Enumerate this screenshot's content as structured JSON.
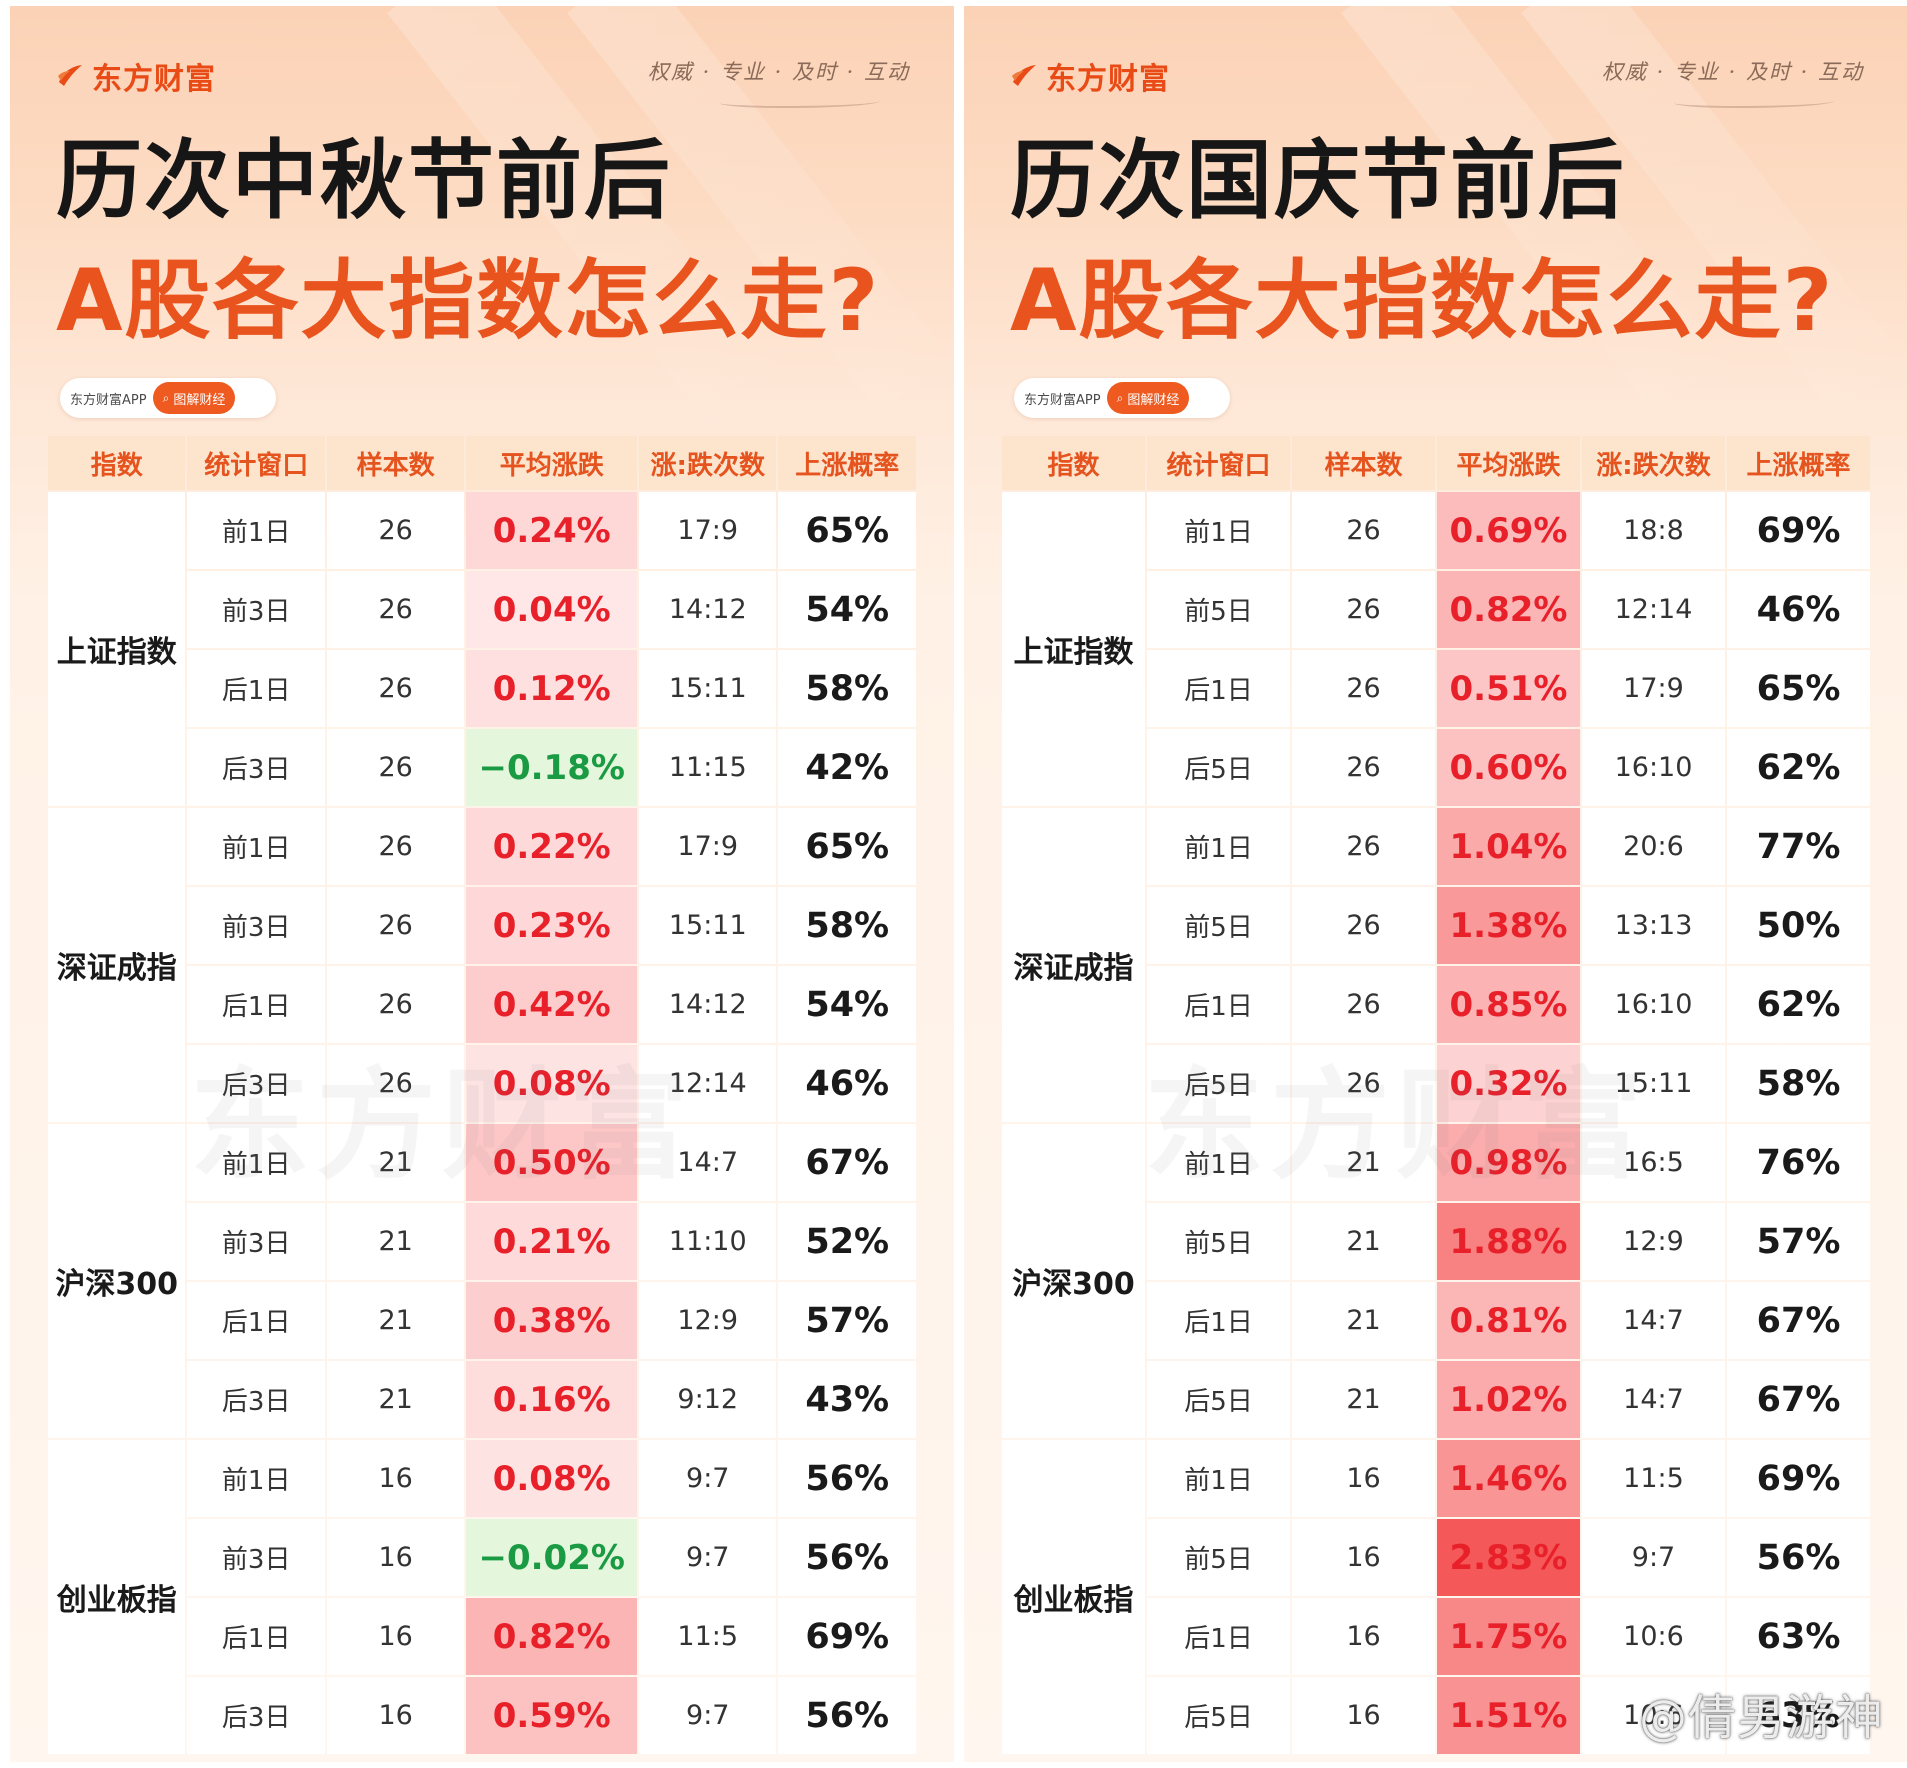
{
  "brand": {
    "name": "东方财富",
    "slogan": "权威 · 专业 · 及时 · 互动",
    "app_label": "东方财富APP",
    "tag_label": "图解财经",
    "watermark": "东方财富",
    "color_accent": "#e9531d"
  },
  "weibo_watermark": "@倩男游神",
  "colors": {
    "header_bg": "#fde4cd",
    "header_text": "#e5531e",
    "up_text": "#e8202a",
    "down_text": "#1b9a44"
  },
  "panels": [
    {
      "title_line1": "历次中秋节前后",
      "title_line2": "A股各大指数怎么走?",
      "headers": [
        "指数",
        "统计窗口",
        "样本数",
        "平均涨跌",
        "涨:跌次数",
        "上涨概率"
      ],
      "groups": [
        {
          "index": "上证指数",
          "rows": [
            {
              "window": "前1日",
              "samples": "26",
              "avg": "0.24%",
              "ratio": "17:9",
              "prob": "65%"
            },
            {
              "window": "前3日",
              "samples": "26",
              "avg": "0.04%",
              "ratio": "14:12",
              "prob": "54%"
            },
            {
              "window": "后1日",
              "samples": "26",
              "avg": "0.12%",
              "ratio": "15:11",
              "prob": "58%"
            },
            {
              "window": "后3日",
              "samples": "26",
              "avg": "−0.18%",
              "ratio": "11:15",
              "prob": "42%"
            }
          ]
        },
        {
          "index": "深证成指",
          "rows": [
            {
              "window": "前1日",
              "samples": "26",
              "avg": "0.22%",
              "ratio": "17:9",
              "prob": "65%"
            },
            {
              "window": "前3日",
              "samples": "26",
              "avg": "0.23%",
              "ratio": "15:11",
              "prob": "58%"
            },
            {
              "window": "后1日",
              "samples": "26",
              "avg": "0.42%",
              "ratio": "14:12",
              "prob": "54%"
            },
            {
              "window": "后3日",
              "samples": "26",
              "avg": "0.08%",
              "ratio": "12:14",
              "prob": "46%"
            }
          ]
        },
        {
          "index": "沪深300",
          "rows": [
            {
              "window": "前1日",
              "samples": "21",
              "avg": "0.50%",
              "ratio": "14:7",
              "prob": "67%"
            },
            {
              "window": "前3日",
              "samples": "21",
              "avg": "0.21%",
              "ratio": "11:10",
              "prob": "52%"
            },
            {
              "window": "后1日",
              "samples": "21",
              "avg": "0.38%",
              "ratio": "12:9",
              "prob": "57%"
            },
            {
              "window": "后3日",
              "samples": "21",
              "avg": "0.16%",
              "ratio": "9:12",
              "prob": "43%"
            }
          ]
        },
        {
          "index": "创业板指",
          "rows": [
            {
              "window": "前1日",
              "samples": "16",
              "avg": "0.08%",
              "ratio": "9:7",
              "prob": "56%"
            },
            {
              "window": "前3日",
              "samples": "16",
              "avg": "−0.02%",
              "ratio": "9:7",
              "prob": "56%"
            },
            {
              "window": "后1日",
              "samples": "16",
              "avg": "0.82%",
              "ratio": "11:5",
              "prob": "69%"
            },
            {
              "window": "后3日",
              "samples": "16",
              "avg": "0.59%",
              "ratio": "9:7",
              "prob": "56%"
            }
          ]
        }
      ]
    },
    {
      "title_line1": "历次国庆节前后",
      "title_line2": "A股各大指数怎么走?",
      "headers": [
        "指数",
        "统计窗口",
        "样本数",
        "平均涨跌",
        "涨:跌次数",
        "上涨概率"
      ],
      "groups": [
        {
          "index": "上证指数",
          "rows": [
            {
              "window": "前1日",
              "samples": "26",
              "avg": "0.69%",
              "ratio": "18:8",
              "prob": "69%"
            },
            {
              "window": "前5日",
              "samples": "26",
              "avg": "0.82%",
              "ratio": "12:14",
              "prob": "46%"
            },
            {
              "window": "后1日",
              "samples": "26",
              "avg": "0.51%",
              "ratio": "17:9",
              "prob": "65%"
            },
            {
              "window": "后5日",
              "samples": "26",
              "avg": "0.60%",
              "ratio": "16:10",
              "prob": "62%"
            }
          ]
        },
        {
          "index": "深证成指",
          "rows": [
            {
              "window": "前1日",
              "samples": "26",
              "avg": "1.04%",
              "ratio": "20:6",
              "prob": "77%"
            },
            {
              "window": "前5日",
              "samples": "26",
              "avg": "1.38%",
              "ratio": "13:13",
              "prob": "50%"
            },
            {
              "window": "后1日",
              "samples": "26",
              "avg": "0.85%",
              "ratio": "16:10",
              "prob": "62%"
            },
            {
              "window": "后5日",
              "samples": "26",
              "avg": "0.32%",
              "ratio": "15:11",
              "prob": "58%"
            }
          ]
        },
        {
          "index": "沪深300",
          "rows": [
            {
              "window": "前1日",
              "samples": "21",
              "avg": "0.98%",
              "ratio": "16:5",
              "prob": "76%"
            },
            {
              "window": "前5日",
              "samples": "21",
              "avg": "1.88%",
              "ratio": "12:9",
              "prob": "57%"
            },
            {
              "window": "后1日",
              "samples": "21",
              "avg": "0.81%",
              "ratio": "14:7",
              "prob": "67%"
            },
            {
              "window": "后5日",
              "samples": "21",
              "avg": "1.02%",
              "ratio": "14:7",
              "prob": "67%"
            }
          ]
        },
        {
          "index": "创业板指",
          "rows": [
            {
              "window": "前1日",
              "samples": "16",
              "avg": "1.46%",
              "ratio": "11:5",
              "prob": "69%"
            },
            {
              "window": "前5日",
              "samples": "16",
              "avg": "2.83%",
              "ratio": "9:7",
              "prob": "56%"
            },
            {
              "window": "后1日",
              "samples": "16",
              "avg": "1.75%",
              "ratio": "10:6",
              "prob": "63%"
            },
            {
              "window": "后5日",
              "samples": "16",
              "avg": "1.51%",
              "ratio": "10:6",
              "prob": "63%"
            }
          ]
        }
      ]
    }
  ]
}
